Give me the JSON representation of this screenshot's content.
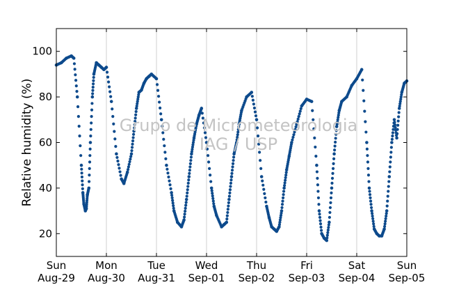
{
  "chart_data": {
    "type": "scatter",
    "title": "",
    "xlabel": "",
    "ylabel": "Relative humidity (%)",
    "xlim": [
      0,
      7
    ],
    "ylim": [
      10,
      110
    ],
    "yticks": [
      20,
      40,
      60,
      80,
      100
    ],
    "x_unit": "days since Sun Aug-29 00:00",
    "xticks": [
      {
        "day": "Sun",
        "date": "Aug-29"
      },
      {
        "day": "Mon",
        "date": "Aug-30"
      },
      {
        "day": "Tue",
        "date": "Aug-31"
      },
      {
        "day": "Wed",
        "date": "Sep-01"
      },
      {
        "day": "Thu",
        "date": "Sep-02"
      },
      {
        "day": "Fri",
        "date": "Sep-03"
      },
      {
        "day": "Sat",
        "date": "Sep-04"
      },
      {
        "day": "Sun",
        "date": "Sep-05"
      }
    ],
    "grid": "vertical",
    "watermark": [
      "Grupo de Micrometeorologia",
      "IAG / USP"
    ],
    "marker_color": "#0d4a8c",
    "series": [
      {
        "name": "",
        "x": [
          0.0,
          0.1,
          0.2,
          0.3,
          0.35,
          0.42,
          0.5,
          0.53,
          0.55,
          0.58,
          0.6,
          0.62,
          0.65,
          0.68,
          0.72,
          0.75,
          0.8,
          0.85,
          0.9,
          0.95,
          1.0,
          1.1,
          1.2,
          1.3,
          1.35,
          1.42,
          1.5,
          1.55,
          1.6,
          1.65,
          1.7,
          1.75,
          1.8,
          1.85,
          1.9,
          2.0,
          2.1,
          2.2,
          2.3,
          2.35,
          2.42,
          2.5,
          2.55,
          2.6,
          2.65,
          2.7,
          2.75,
          2.8,
          2.85,
          2.9,
          3.0,
          3.1,
          3.15,
          3.2,
          3.3,
          3.35,
          3.4,
          3.45,
          3.5,
          3.55,
          3.6,
          3.65,
          3.7,
          3.8,
          3.9,
          4.0,
          4.1,
          4.2,
          4.25,
          4.3,
          4.35,
          4.4,
          4.45,
          4.5,
          4.55,
          4.6,
          4.65,
          4.7,
          4.8,
          4.9,
          5.0,
          5.1,
          5.2,
          5.25,
          5.3,
          5.35,
          5.4,
          5.45,
          5.5,
          5.55,
          5.6,
          5.65,
          5.7,
          5.8,
          5.9,
          6.0,
          6.1,
          6.2,
          6.25,
          6.3,
          6.35,
          6.4,
          6.45,
          6.5,
          6.55,
          6.6,
          6.65,
          6.7,
          6.75,
          6.8,
          6.85,
          6.9,
          6.95,
          7.0
        ],
        "y": [
          94,
          95,
          97,
          98,
          97,
          80,
          50,
          38,
          33,
          30,
          31,
          37,
          40,
          60,
          80,
          90,
          95,
          94,
          93,
          92,
          93,
          78,
          55,
          44,
          42,
          47,
          55,
          65,
          75,
          82,
          83,
          86,
          88,
          89,
          90,
          88,
          70,
          50,
          38,
          30,
          25,
          23,
          26,
          35,
          45,
          55,
          62,
          68,
          72,
          75,
          60,
          40,
          32,
          28,
          23,
          24,
          25,
          35,
          45,
          55,
          60,
          68,
          74,
          80,
          82,
          70,
          45,
          32,
          27,
          23,
          22,
          21,
          23,
          30,
          40,
          48,
          54,
          60,
          68,
          76,
          79,
          78,
          50,
          30,
          20,
          18,
          17,
          25,
          40,
          55,
          67,
          74,
          78,
          80,
          85,
          88,
          92,
          60,
          40,
          30,
          22,
          20,
          19,
          19,
          22,
          30,
          45,
          60,
          70,
          62,
          75,
          82,
          86,
          87
        ]
      }
    ]
  }
}
